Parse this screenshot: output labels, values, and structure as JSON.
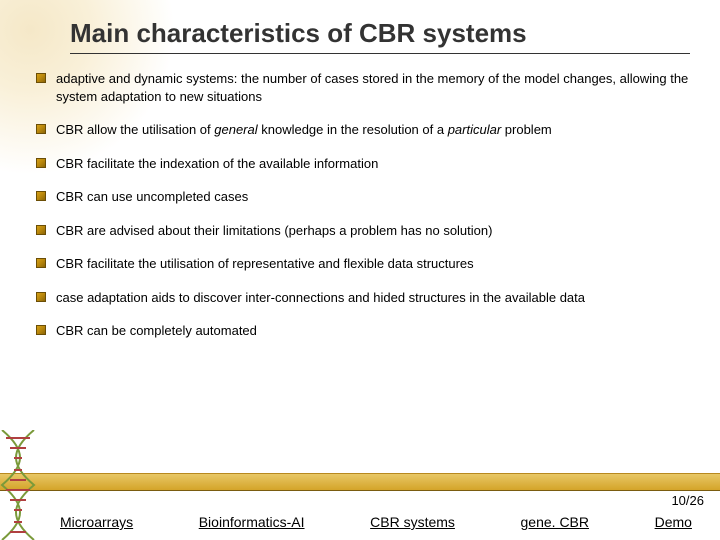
{
  "title": "Main characteristics of CBR systems",
  "bullets": [
    "adaptive and dynamic systems: the number of cases stored in the memory of the model changes, allowing the system adaptation to new situations",
    "CBR allow the utilisation of <i>general</i> knowledge in the resolution of a <i>particular</i> problem",
    "CBR facilitate the indexation of the available information",
    "CBR can use uncompleted cases",
    "CBR are advised about their limitations (perhaps a problem has no solution)",
    "CBR facilitate the utilisation of representative and flexible data structures",
    "case adaptation aids to discover inter-connections and hided structures in the available data",
    "CBR can be completely automated"
  ],
  "page": "10/26",
  "nav": {
    "microarrays": "Microarrays",
    "bioinf": "Bioinformatics-AI",
    "cbr": "CBR systems",
    "gene": "gene. CBR",
    "demo": "Demo"
  },
  "colors": {
    "bullet_fill": "#d4a017",
    "band_top": "#e8c766",
    "band_bottom": "#d4a429"
  }
}
